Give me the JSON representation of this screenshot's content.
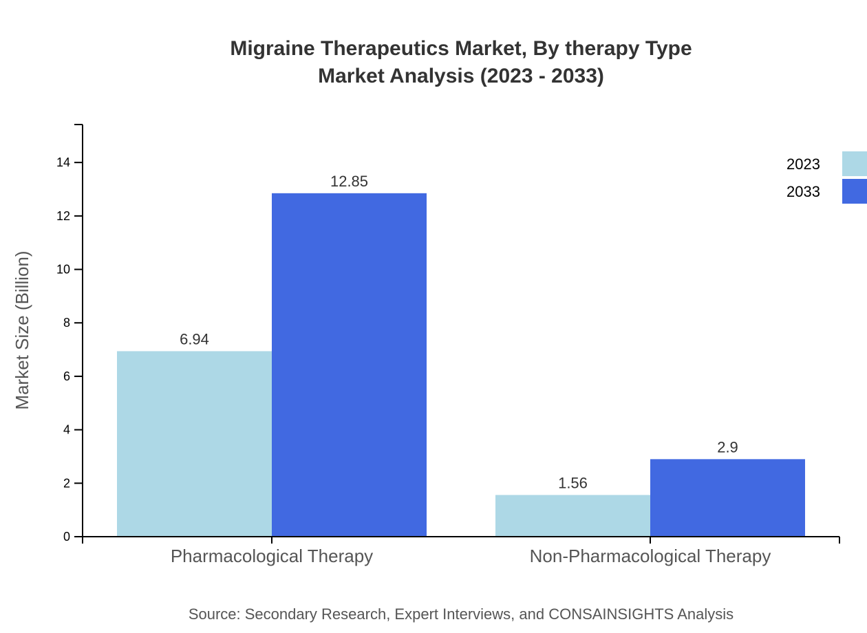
{
  "chart_data": {
    "type": "bar",
    "title": "Migraine Therapeutics Market, By therapy Type",
    "subtitle": "Market Analysis (2023 - 2033)",
    "xlabel": "",
    "ylabel": "Market Size (Billion)",
    "categories": [
      "Pharmacological Therapy",
      "Non-Pharmacological Therapy"
    ],
    "series": [
      {
        "name": "2023",
        "values": [
          6.94,
          1.56
        ],
        "labels": [
          "6.94",
          "1.56"
        ],
        "color": "#add8e6"
      },
      {
        "name": "2033",
        "values": [
          12.85,
          2.9
        ],
        "labels": [
          "12.85",
          "2.9"
        ],
        "color": "#4169e1"
      }
    ],
    "ylim": [
      0,
      15.42
    ],
    "yticks": [
      0,
      2,
      4,
      6,
      8,
      10,
      12,
      14
    ],
    "grid": false,
    "legend": "top-right",
    "source": "Source: Secondary Research, Expert Interviews, and CONSAINSIGHTS Analysis"
  }
}
